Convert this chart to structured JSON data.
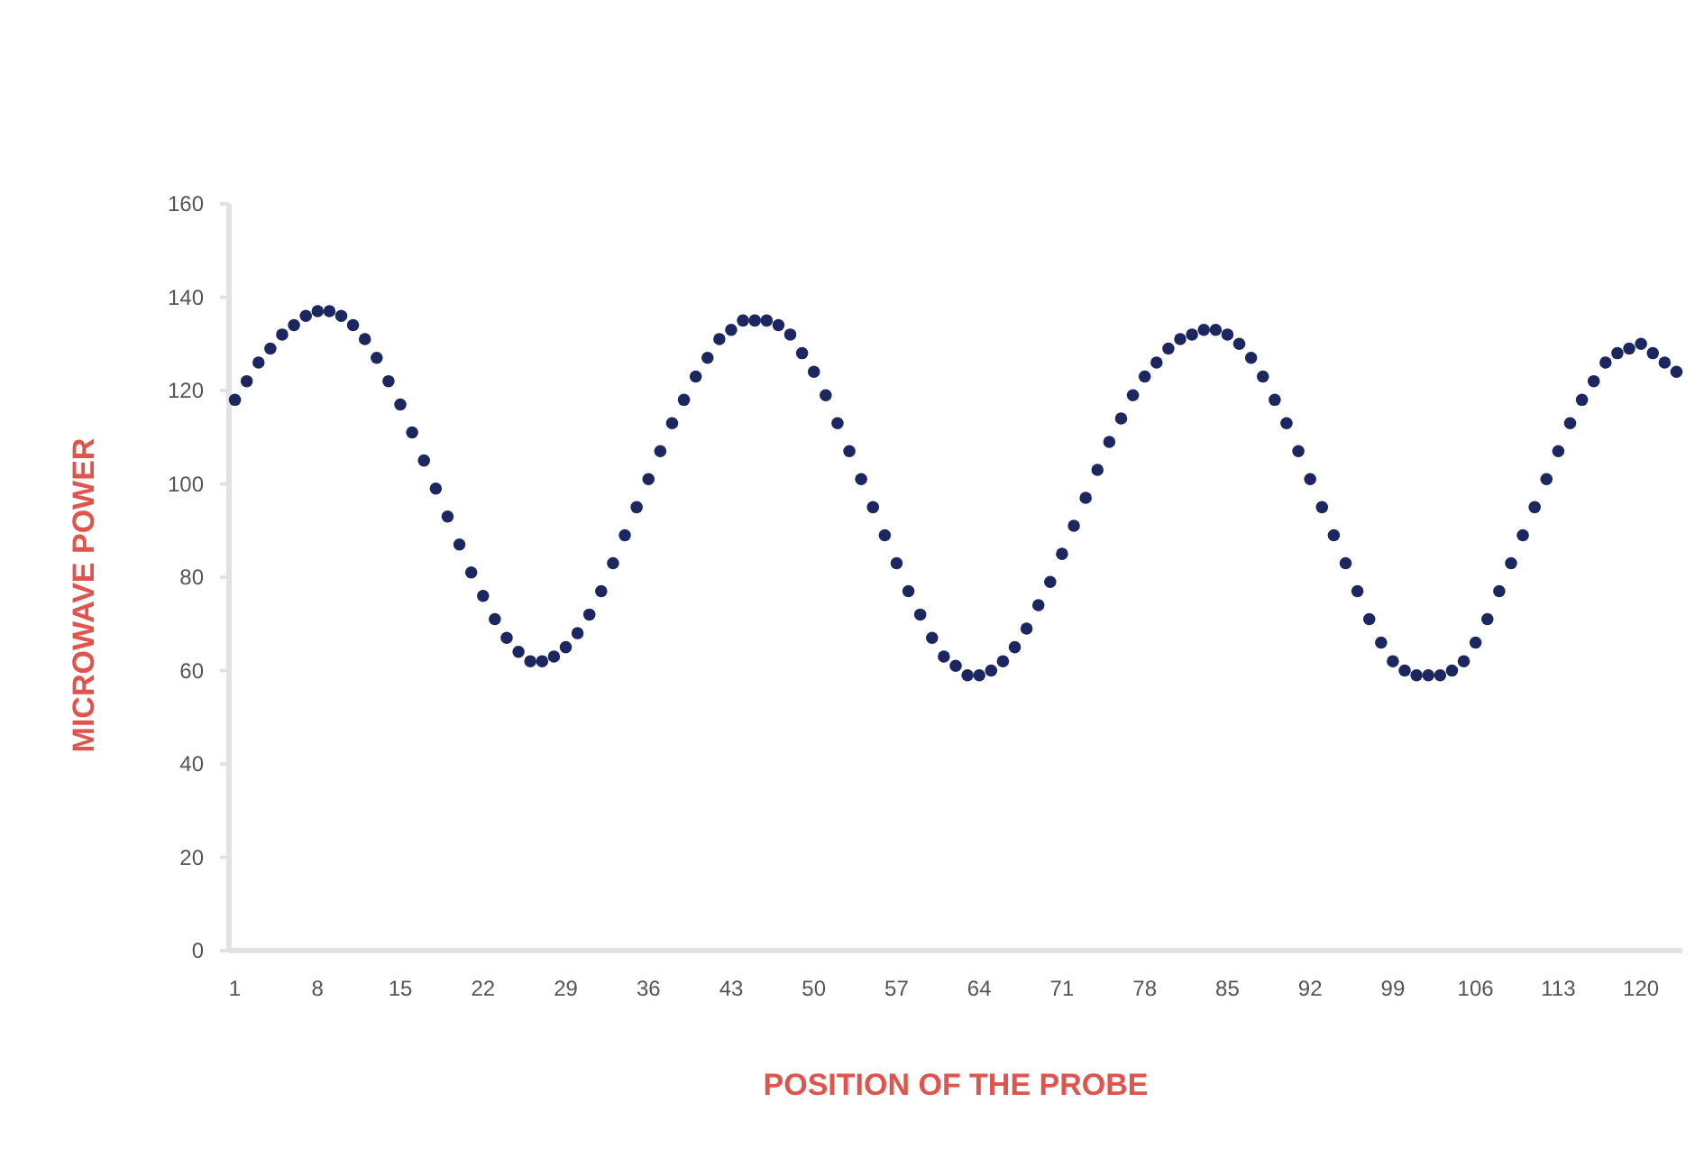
{
  "chart_data": {
    "type": "scatter",
    "xlabel": "POSITION OF THE PROBE",
    "ylabel": "MICROWAVE POWER",
    "x": [
      1,
      2,
      3,
      4,
      5,
      6,
      7,
      8,
      9,
      10,
      11,
      12,
      13,
      14,
      15,
      16,
      17,
      18,
      19,
      20,
      21,
      22,
      23,
      24,
      25,
      26,
      27,
      28,
      29,
      30,
      31,
      32,
      33,
      34,
      35,
      36,
      37,
      38,
      39,
      40,
      41,
      42,
      43,
      44,
      45,
      46,
      47,
      48,
      49,
      50,
      51,
      52,
      53,
      54,
      55,
      56,
      57,
      58,
      59,
      60,
      61,
      62,
      63,
      64,
      65,
      66,
      67,
      68,
      69,
      70,
      71,
      72,
      73,
      74,
      75,
      76,
      77,
      78,
      79,
      80,
      81,
      82,
      83,
      84,
      85,
      86,
      87,
      88,
      89,
      90,
      91,
      92,
      93,
      94,
      95,
      96,
      97,
      98,
      99,
      100,
      101,
      102,
      103,
      104,
      105,
      106,
      107,
      108,
      109,
      110,
      111,
      112,
      113,
      114,
      115,
      116,
      117,
      118,
      119,
      120,
      121,
      122,
      123
    ],
    "series": [
      {
        "color": "#1c2660",
        "values": [
          118,
          122,
          126,
          129,
          132,
          134,
          136,
          137,
          137,
          136,
          134,
          131,
          127,
          122,
          117,
          111,
          105,
          99,
          93,
          87,
          81,
          76,
          71,
          67,
          64,
          62,
          62,
          63,
          65,
          68,
          72,
          77,
          83,
          89,
          95,
          101,
          107,
          113,
          118,
          123,
          127,
          131,
          133,
          135,
          135,
          135,
          134,
          132,
          128,
          124,
          119,
          113,
          107,
          101,
          95,
          89,
          83,
          77,
          72,
          67,
          63,
          61,
          59,
          59,
          60,
          62,
          65,
          69,
          74,
          79,
          85,
          91,
          97,
          103,
          109,
          114,
          119,
          123,
          126,
          129,
          131,
          132,
          133,
          133,
          132,
          130,
          127,
          123,
          118,
          113,
          107,
          101,
          95,
          89,
          83,
          77,
          71,
          66,
          62,
          60,
          59,
          59,
          59,
          60,
          62,
          66,
          71,
          77,
          83,
          89,
          95,
          101,
          107,
          113,
          118,
          122,
          126,
          128,
          129,
          130,
          128,
          126,
          124
        ]
      }
    ],
    "xlim": [
      0.5,
      123.5
    ],
    "xticks": [
      1,
      8,
      15,
      22,
      29,
      36,
      43,
      50,
      57,
      64,
      71,
      78,
      85,
      92,
      99,
      106,
      113,
      120
    ],
    "ylim": [
      0,
      160
    ],
    "yticks": [
      0,
      20,
      40,
      60,
      80,
      100,
      120,
      140,
      160
    ],
    "marker": "circle",
    "grid": false
  }
}
